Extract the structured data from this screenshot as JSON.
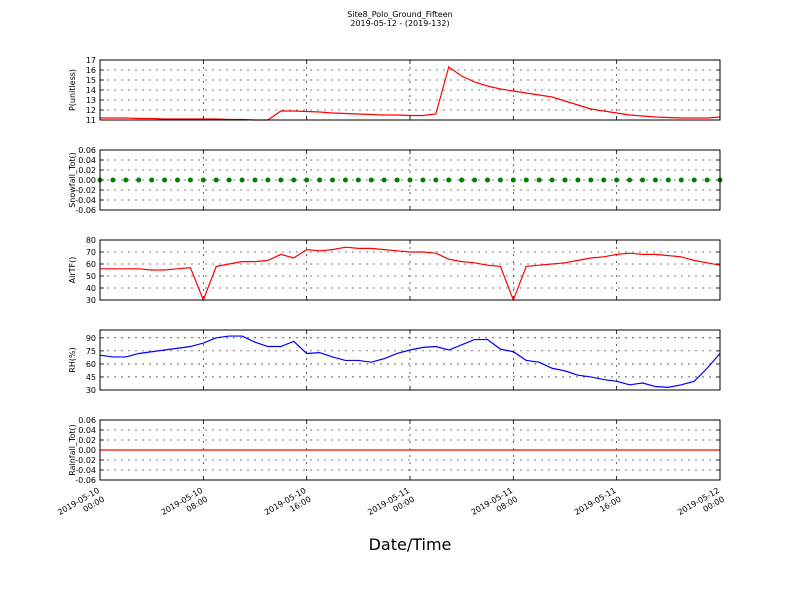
{
  "chart_data": [
    {
      "type": "line",
      "title": "Site8_Polo_Ground_Fifteen",
      "subtitle": "2019-05-12 - (2019-132)",
      "y_label": "P(unitless)",
      "x": [
        "2019-05-10 00:00",
        "2019-05-10 01:00",
        "2019-05-10 02:00",
        "2019-05-10 03:00",
        "2019-05-10 04:00",
        "2019-05-10 05:00",
        "2019-05-10 06:00",
        "2019-05-10 07:00",
        "2019-05-10 08:00",
        "2019-05-10 09:00",
        "2019-05-10 10:00",
        "2019-05-10 11:00",
        "2019-05-10 12:00",
        "2019-05-10 13:00",
        "2019-05-10 14:00",
        "2019-05-10 15:00",
        "2019-05-10 16:00",
        "2019-05-10 17:00",
        "2019-05-10 18:00",
        "2019-05-10 19:00",
        "2019-05-10 20:00",
        "2019-05-10 21:00",
        "2019-05-10 22:00",
        "2019-05-10 23:00",
        "2019-05-11 00:00",
        "2019-05-11 01:00",
        "2019-05-11 02:00",
        "2019-05-11 03:00",
        "2019-05-11 04:00",
        "2019-05-11 05:00",
        "2019-05-11 06:00",
        "2019-05-11 07:00",
        "2019-05-11 08:00",
        "2019-05-11 09:00",
        "2019-05-11 10:00",
        "2019-05-11 11:00",
        "2019-05-11 12:00",
        "2019-05-11 13:00",
        "2019-05-11 14:00",
        "2019-05-11 15:00",
        "2019-05-11 16:00",
        "2019-05-11 17:00",
        "2019-05-11 18:00",
        "2019-05-11 19:00",
        "2019-05-11 20:00",
        "2019-05-11 21:00",
        "2019-05-11 22:00",
        "2019-05-11 23:00",
        "2019-05-12 00:00"
      ],
      "values": [
        11.2,
        11.2,
        11.2,
        11.15,
        11.15,
        11.1,
        11.1,
        11.1,
        11.1,
        11.1,
        11.05,
        11.05,
        11.0,
        11.0,
        11.9,
        11.9,
        11.85,
        11.8,
        11.7,
        11.65,
        11.6,
        11.55,
        11.5,
        11.5,
        11.45,
        11.45,
        11.6,
        16.3,
        15.4,
        14.8,
        14.4,
        14.1,
        13.9,
        13.7,
        13.5,
        13.3,
        12.9,
        12.5,
        12.1,
        11.9,
        11.7,
        11.5,
        11.4,
        11.3,
        11.25,
        11.2,
        11.2,
        11.2,
        11.3
      ],
      "color": "#ff0000",
      "ylim": [
        11,
        17
      ],
      "yticks": [
        11,
        12,
        13,
        14,
        15,
        16,
        17
      ],
      "xticks": [
        "2019-05-10 00:00",
        "2019-05-10 08:00",
        "2019-05-10 16:00",
        "2019-05-11 00:00",
        "2019-05-11 08:00",
        "2019-05-11 16:00",
        "2019-05-12 00:00"
      ],
      "grid": true
    },
    {
      "type": "scatter",
      "y_label": "Snowfall_Tot()",
      "x": [
        "2019-05-10 00:00",
        "2019-05-10 01:00",
        "2019-05-10 02:00",
        "2019-05-10 03:00",
        "2019-05-10 04:00",
        "2019-05-10 05:00",
        "2019-05-10 06:00",
        "2019-05-10 07:00",
        "2019-05-10 08:00",
        "2019-05-10 09:00",
        "2019-05-10 10:00",
        "2019-05-10 11:00",
        "2019-05-10 12:00",
        "2019-05-10 13:00",
        "2019-05-10 14:00",
        "2019-05-10 15:00",
        "2019-05-10 16:00",
        "2019-05-10 17:00",
        "2019-05-10 18:00",
        "2019-05-10 19:00",
        "2019-05-10 20:00",
        "2019-05-10 21:00",
        "2019-05-10 22:00",
        "2019-05-10 23:00",
        "2019-05-11 00:00",
        "2019-05-11 01:00",
        "2019-05-11 02:00",
        "2019-05-11 03:00",
        "2019-05-11 04:00",
        "2019-05-11 05:00",
        "2019-05-11 06:00",
        "2019-05-11 07:00",
        "2019-05-11 08:00",
        "2019-05-11 09:00",
        "2019-05-11 10:00",
        "2019-05-11 11:00",
        "2019-05-11 12:00",
        "2019-05-11 13:00",
        "2019-05-11 14:00",
        "2019-05-11 15:00",
        "2019-05-11 16:00",
        "2019-05-11 17:00",
        "2019-05-11 18:00",
        "2019-05-11 19:00",
        "2019-05-11 20:00",
        "2019-05-11 21:00",
        "2019-05-11 22:00",
        "2019-05-11 23:00",
        "2019-05-12 00:00"
      ],
      "values": [
        0,
        0,
        0,
        0,
        0,
        0,
        0,
        0,
        0,
        0,
        0,
        0,
        0,
        0,
        0,
        0,
        0,
        0,
        0,
        0,
        0,
        0,
        0,
        0,
        0,
        0,
        0,
        0,
        0,
        0,
        0,
        0,
        0,
        0,
        0,
        0,
        0,
        0,
        0,
        0,
        0,
        0,
        0,
        0,
        0,
        0,
        0,
        0,
        0
      ],
      "color": "#008000",
      "ylim": [
        -0.06,
        0.06
      ],
      "yticks": [
        -0.06,
        -0.04,
        -0.02,
        {
          "value": 0,
          "label": "0.00"
        },
        0.02,
        0.04,
        0.06
      ],
      "xticks": [
        "2019-05-10 00:00",
        "2019-05-10 08:00",
        "2019-05-10 16:00",
        "2019-05-11 00:00",
        "2019-05-11 08:00",
        "2019-05-11 16:00",
        "2019-05-12 00:00"
      ],
      "grid": true
    },
    {
      "type": "line",
      "y_label": "AirTF()",
      "x": [
        "2019-05-10 00:00",
        "2019-05-10 01:00",
        "2019-05-10 02:00",
        "2019-05-10 03:00",
        "2019-05-10 04:00",
        "2019-05-10 05:00",
        "2019-05-10 06:00",
        "2019-05-10 07:00",
        "2019-05-10 08:00",
        "2019-05-10 09:00",
        "2019-05-10 10:00",
        "2019-05-10 11:00",
        "2019-05-10 12:00",
        "2019-05-10 13:00",
        "2019-05-10 14:00",
        "2019-05-10 15:00",
        "2019-05-10 16:00",
        "2019-05-10 17:00",
        "2019-05-10 18:00",
        "2019-05-10 19:00",
        "2019-05-10 20:00",
        "2019-05-10 21:00",
        "2019-05-10 22:00",
        "2019-05-10 23:00",
        "2019-05-11 00:00",
        "2019-05-11 01:00",
        "2019-05-11 02:00",
        "2019-05-11 03:00",
        "2019-05-11 04:00",
        "2019-05-11 05:00",
        "2019-05-11 06:00",
        "2019-05-11 07:00",
        "2019-05-11 08:00",
        "2019-05-11 09:00",
        "2019-05-11 10:00",
        "2019-05-11 11:00",
        "2019-05-11 12:00",
        "2019-05-11 13:00",
        "2019-05-11 14:00",
        "2019-05-11 15:00",
        "2019-05-11 16:00",
        "2019-05-11 17:00",
        "2019-05-11 18:00",
        "2019-05-11 19:00",
        "2019-05-11 20:00",
        "2019-05-11 21:00",
        "2019-05-11 22:00",
        "2019-05-11 23:00",
        "2019-05-12 00:00"
      ],
      "values": [
        56,
        56,
        56,
        56,
        55,
        55,
        56,
        57,
        30,
        58,
        60,
        62,
        62,
        63,
        68,
        65,
        72,
        71,
        72,
        74,
        73,
        73,
        72,
        71,
        70,
        70,
        69,
        64,
        62,
        61,
        59,
        58,
        30,
        58,
        59,
        60,
        61,
        63,
        65,
        66,
        68,
        69,
        68,
        68,
        67,
        66,
        63,
        61,
        59
      ],
      "color": "#ff0000",
      "ylim": [
        30,
        80
      ],
      "yticks": [
        30,
        40,
        50,
        60,
        70,
        80
      ],
      "xticks": [
        "2019-05-10 00:00",
        "2019-05-10 08:00",
        "2019-05-10 16:00",
        "2019-05-11 00:00",
        "2019-05-11 08:00",
        "2019-05-11 16:00",
        "2019-05-12 00:00"
      ],
      "grid": true
    },
    {
      "type": "line",
      "y_label": "RH(%)",
      "x": [
        "2019-05-10 00:00",
        "2019-05-10 01:00",
        "2019-05-10 02:00",
        "2019-05-10 03:00",
        "2019-05-10 04:00",
        "2019-05-10 05:00",
        "2019-05-10 06:00",
        "2019-05-10 07:00",
        "2019-05-10 08:00",
        "2019-05-10 09:00",
        "2019-05-10 10:00",
        "2019-05-10 11:00",
        "2019-05-10 12:00",
        "2019-05-10 13:00",
        "2019-05-10 14:00",
        "2019-05-10 15:00",
        "2019-05-10 16:00",
        "2019-05-10 17:00",
        "2019-05-10 18:00",
        "2019-05-10 19:00",
        "2019-05-10 20:00",
        "2019-05-10 21:00",
        "2019-05-10 22:00",
        "2019-05-10 23:00",
        "2019-05-11 00:00",
        "2019-05-11 01:00",
        "2019-05-11 02:00",
        "2019-05-11 03:00",
        "2019-05-11 04:00",
        "2019-05-11 05:00",
        "2019-05-11 06:00",
        "2019-05-11 07:00",
        "2019-05-11 08:00",
        "2019-05-11 09:00",
        "2019-05-11 10:00",
        "2019-05-11 11:00",
        "2019-05-11 12:00",
        "2019-05-11 13:00",
        "2019-05-11 14:00",
        "2019-05-11 15:00",
        "2019-05-11 16:00",
        "2019-05-11 17:00",
        "2019-05-11 18:00",
        "2019-05-11 19:00",
        "2019-05-11 20:00",
        "2019-05-11 21:00",
        "2019-05-11 22:00",
        "2019-05-11 23:00",
        "2019-05-12 00:00"
      ],
      "values": [
        70,
        68,
        68,
        72,
        74,
        76,
        78,
        80,
        84,
        90,
        92,
        92,
        85,
        80,
        80,
        86,
        72,
        73,
        68,
        64,
        64,
        62,
        66,
        72,
        76,
        79,
        80,
        76,
        82,
        88,
        88,
        77,
        74,
        64,
        62,
        55,
        52,
        47,
        45,
        42,
        40,
        36,
        38,
        34,
        33,
        36,
        40,
        55,
        72
      ],
      "color": "#0000ff",
      "ylim": [
        30,
        99
      ],
      "yticks": [
        30,
        45,
        60,
        75,
        90
      ],
      "xticks": [
        "2019-05-10 00:00",
        "2019-05-10 08:00",
        "2019-05-10 16:00",
        "2019-05-11 00:00",
        "2019-05-11 08:00",
        "2019-05-11 16:00",
        "2019-05-12 00:00"
      ],
      "grid": true
    },
    {
      "type": "line",
      "y_label": "Rainfall_Tot()",
      "x_label": "Date/Time",
      "x": [
        "2019-05-10 00:00",
        "2019-05-10 01:00",
        "2019-05-10 02:00",
        "2019-05-10 03:00",
        "2019-05-10 04:00",
        "2019-05-10 05:00",
        "2019-05-10 06:00",
        "2019-05-10 07:00",
        "2019-05-10 08:00",
        "2019-05-10 09:00",
        "2019-05-10 10:00",
        "2019-05-10 11:00",
        "2019-05-10 12:00",
        "2019-05-10 13:00",
        "2019-05-10 14:00",
        "2019-05-10 15:00",
        "2019-05-10 16:00",
        "2019-05-10 17:00",
        "2019-05-10 18:00",
        "2019-05-10 19:00",
        "2019-05-10 20:00",
        "2019-05-10 21:00",
        "2019-05-10 22:00",
        "2019-05-10 23:00",
        "2019-05-11 00:00",
        "2019-05-11 01:00",
        "2019-05-11 02:00",
        "2019-05-11 03:00",
        "2019-05-11 04:00",
        "2019-05-11 05:00",
        "2019-05-11 06:00",
        "2019-05-11 07:00",
        "2019-05-11 08:00",
        "2019-05-11 09:00",
        "2019-05-11 10:00",
        "2019-05-11 11:00",
        "2019-05-11 12:00",
        "2019-05-11 13:00",
        "2019-05-11 14:00",
        "2019-05-11 15:00",
        "2019-05-11 16:00",
        "2019-05-11 17:00",
        "2019-05-11 18:00",
        "2019-05-11 19:00",
        "2019-05-11 20:00",
        "2019-05-11 21:00",
        "2019-05-11 22:00",
        "2019-05-11 23:00",
        "2019-05-12 00:00"
      ],
      "values": [
        0,
        0,
        0,
        0,
        0,
        0,
        0,
        0,
        0,
        0,
        0,
        0,
        0,
        0,
        0,
        0,
        0,
        0,
        0,
        0,
        0,
        0,
        0,
        0,
        0,
        0,
        0,
        0,
        0,
        0,
        0,
        0,
        0,
        0,
        0,
        0,
        0,
        0,
        0,
        0,
        0,
        0,
        0,
        0,
        0,
        0,
        0,
        0,
        0
      ],
      "color": "#ff0000",
      "ylim": [
        -0.06,
        0.06
      ],
      "yticks": [
        -0.06,
        -0.04,
        -0.02,
        {
          "value": 0,
          "label": "0.00"
        },
        0.02,
        0.04,
        0.06
      ],
      "xticks": [
        "2019-05-10 00:00",
        "2019-05-10 08:00",
        "2019-05-10 16:00",
        "2019-05-11 00:00",
        "2019-05-11 08:00",
        "2019-05-11 16:00",
        "2019-05-12 00:00"
      ],
      "grid": true,
      "show_xtick_labels": true
    }
  ]
}
